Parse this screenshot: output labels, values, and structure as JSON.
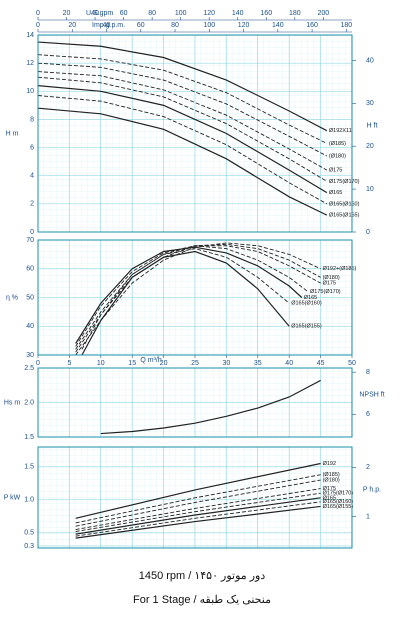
{
  "chart_data": [
    {
      "type": "line",
      "ylabel": "H m",
      "y2label": "H ft",
      "xlim": [
        0,
        50
      ],
      "ylim": [
        0,
        14
      ],
      "yticks": [
        0,
        2,
        4,
        6,
        8,
        10,
        12,
        14
      ],
      "y2lim": [
        0,
        45.93
      ],
      "y2ticks": [
        0,
        10,
        20,
        30,
        40
      ],
      "grid": true,
      "top_axes": [
        {
          "label": "U.S.gpm",
          "lim": [
            0,
            220.1
          ],
          "ticks": [
            0,
            20,
            40,
            60,
            80,
            100,
            120,
            140,
            160,
            180,
            200
          ]
        },
        {
          "label": "Imp.g.p.m.",
          "lim": [
            0,
            183.3
          ],
          "ticks": [
            0,
            20,
            40,
            60,
            80,
            100,
            120,
            140,
            160,
            180
          ]
        }
      ],
      "series": [
        {
          "name": "Ø192X11",
          "color": "#222",
          "dashed": false,
          "x": [
            0,
            10,
            20,
            30,
            40,
            46
          ],
          "values": [
            13.5,
            13.2,
            12.4,
            10.8,
            8.6,
            7.2
          ]
        },
        {
          "name": "(Ø185)",
          "color": "#222",
          "dashed": true,
          "x": [
            0,
            10,
            20,
            30,
            40,
            46
          ],
          "values": [
            12.6,
            12.3,
            11.5,
            9.9,
            7.6,
            6.3
          ]
        },
        {
          "name": "(Ø180)",
          "color": "#222",
          "dashed": true,
          "x": [
            0,
            10,
            20,
            30,
            40,
            46
          ],
          "values": [
            12.0,
            11.7,
            10.8,
            9.1,
            6.8,
            5.4
          ]
        },
        {
          "name": "Ø175",
          "color": "#222",
          "dashed": true,
          "x": [
            0,
            10,
            20,
            30,
            40,
            46
          ],
          "values": [
            11.4,
            11.1,
            10.1,
            8.3,
            5.9,
            4.4
          ]
        },
        {
          "name": "Ø175(Ø170)",
          "color": "#222",
          "dashed": true,
          "x": [
            0,
            10,
            20,
            30,
            40,
            46
          ],
          "values": [
            11.0,
            10.6,
            9.6,
            7.7,
            5.2,
            3.6
          ]
        },
        {
          "name": "Ø165",
          "color": "#222",
          "dashed": false,
          "x": [
            0,
            10,
            20,
            30,
            40,
            46
          ],
          "values": [
            10.4,
            10.0,
            9.0,
            7.0,
            4.4,
            2.8
          ]
        },
        {
          "name": "Ø165(Ø160)",
          "color": "#222",
          "dashed": true,
          "x": [
            0,
            10,
            20,
            30,
            40,
            46
          ],
          "values": [
            9.7,
            9.3,
            8.2,
            6.2,
            3.5,
            2.0
          ]
        },
        {
          "name": "Ø165(Ø155)",
          "color": "#222",
          "dashed": false,
          "x": [
            0,
            10,
            20,
            30,
            40,
            46
          ],
          "values": [
            8.8,
            8.4,
            7.3,
            5.2,
            2.5,
            1.2
          ]
        }
      ]
    },
    {
      "type": "line",
      "ylabel": "η %",
      "xlabel": "Q m³/h",
      "xlim": [
        0,
        50
      ],
      "xticks": [
        0,
        5,
        10,
        15,
        20,
        25,
        30,
        35,
        40,
        45,
        50
      ],
      "ylim": [
        30,
        70
      ],
      "yticks": [
        30,
        40,
        50,
        60,
        70
      ],
      "grid": true,
      "series": [
        {
          "name": "Ø192+(Ø185)",
          "color": "#222",
          "dashed": true,
          "x": [
            6,
            10,
            15,
            20,
            25,
            30,
            35,
            40,
            45
          ],
          "values": [
            30,
            42,
            55,
            63,
            67.5,
            69,
            68,
            65,
            60
          ]
        },
        {
          "name": "(Ø180)",
          "color": "#222",
          "dashed": true,
          "x": [
            6,
            10,
            15,
            20,
            25,
            30,
            35,
            40,
            45
          ],
          "values": [
            31,
            44,
            57,
            64,
            68,
            68.5,
            67,
            63,
            57
          ]
        },
        {
          "name": "Ø175",
          "color": "#222",
          "dashed": true,
          "x": [
            6,
            10,
            15,
            20,
            25,
            30,
            35,
            40,
            45
          ],
          "values": [
            32,
            45,
            58,
            65,
            68,
            68,
            66,
            61,
            55
          ]
        },
        {
          "name": "Ø175(Ø170)",
          "color": "#222",
          "dashed": true,
          "x": [
            6,
            10,
            15,
            20,
            25,
            30,
            35,
            40,
            43
          ],
          "values": [
            33,
            47,
            59,
            65.5,
            68,
            67,
            63,
            57,
            52
          ]
        },
        {
          "name": "Ø165",
          "color": "#222",
          "dashed": false,
          "x": [
            6,
            10,
            15,
            20,
            25,
            30,
            35,
            40,
            42
          ],
          "values": [
            34,
            48,
            60,
            66,
            67.5,
            65.5,
            61,
            54,
            50
          ]
        },
        {
          "name": "Ø165(Ø160)",
          "color": "#222",
          "dashed": true,
          "x": [
            7,
            10,
            15,
            20,
            25,
            30,
            35,
            40
          ],
          "values": [
            32,
            44,
            58,
            65,
            67,
            64,
            57,
            48
          ]
        },
        {
          "name": "Ø165(Ø155)",
          "color": "#222",
          "dashed": false,
          "x": [
            7,
            10,
            15,
            20,
            25,
            30,
            35,
            40
          ],
          "values": [
            30,
            42,
            57,
            64,
            66,
            62,
            53,
            40
          ]
        }
      ]
    },
    {
      "type": "line",
      "ylabel": "Hs m",
      "y2label": "NPSH ft",
      "xlim": [
        0,
        50
      ],
      "ylim": [
        1.5,
        2.5
      ],
      "yticks": [
        1.5,
        {
          "value": 2,
          "label": "2.0"
        },
        2.5
      ],
      "y2lim": [
        4.92,
        8.2
      ],
      "y2ticks": [
        6,
        8
      ],
      "grid": true,
      "series": [
        {
          "name": "NPSH",
          "color": "#222",
          "dashed": false,
          "x": [
            10,
            15,
            20,
            25,
            30,
            35,
            40,
            45
          ],
          "values": [
            1.55,
            1.58,
            1.63,
            1.7,
            1.8,
            1.92,
            2.08,
            2.32
          ]
        }
      ]
    },
    {
      "type": "line",
      "ylabel": "P kW",
      "y2label": "P h.p.",
      "xlim": [
        0,
        50
      ],
      "ylim": [
        0.27,
        1.8
      ],
      "yticks": [
        0.3,
        0.5,
        {
          "value": 1,
          "label": "1.0"
        },
        1.5
      ],
      "y2lim": [
        0.362,
        2.414
      ],
      "y2ticks": [
        1,
        2
      ],
      "grid": true,
      "series": [
        {
          "name": "Ø192",
          "color": "#222",
          "dashed": false,
          "x": [
            6,
            25,
            45
          ],
          "values": [
            0.72,
            1.15,
            1.55
          ]
        },
        {
          "name": "(Ø185)",
          "color": "#222",
          "dashed": true,
          "x": [
            6,
            25,
            45
          ],
          "values": [
            0.65,
            1.03,
            1.38
          ]
        },
        {
          "name": "(Ø180)",
          "color": "#222",
          "dashed": true,
          "x": [
            6,
            25,
            45
          ],
          "values": [
            0.6,
            0.96,
            1.3
          ]
        },
        {
          "name": "Ø175",
          "color": "#222",
          "dashed": true,
          "x": [
            6,
            25,
            45
          ],
          "values": [
            0.55,
            0.87,
            1.17
          ]
        },
        {
          "name": "Ø175(Ø170)",
          "color": "#222",
          "dashed": true,
          "x": [
            6,
            25,
            45
          ],
          "values": [
            0.52,
            0.82,
            1.1
          ]
        },
        {
          "name": "Ø165",
          "color": "#222",
          "dashed": false,
          "x": [
            6,
            25,
            45
          ],
          "values": [
            0.48,
            0.77,
            1.03
          ]
        },
        {
          "name": "Ø165(Ø160)",
          "color": "#222",
          "dashed": true,
          "x": [
            6,
            25,
            45
          ],
          "values": [
            0.45,
            0.72,
            0.97
          ]
        },
        {
          "name": "Ø165(Ø155)",
          "color": "#222",
          "dashed": false,
          "x": [
            6,
            25,
            45
          ],
          "values": [
            0.42,
            0.67,
            0.9
          ]
        }
      ]
    }
  ],
  "footer": {
    "line1": "1450 rpm / ۱۴۵۰ دور موتور",
    "line2": "For 1 Stage / منحنی یک طبقه"
  }
}
